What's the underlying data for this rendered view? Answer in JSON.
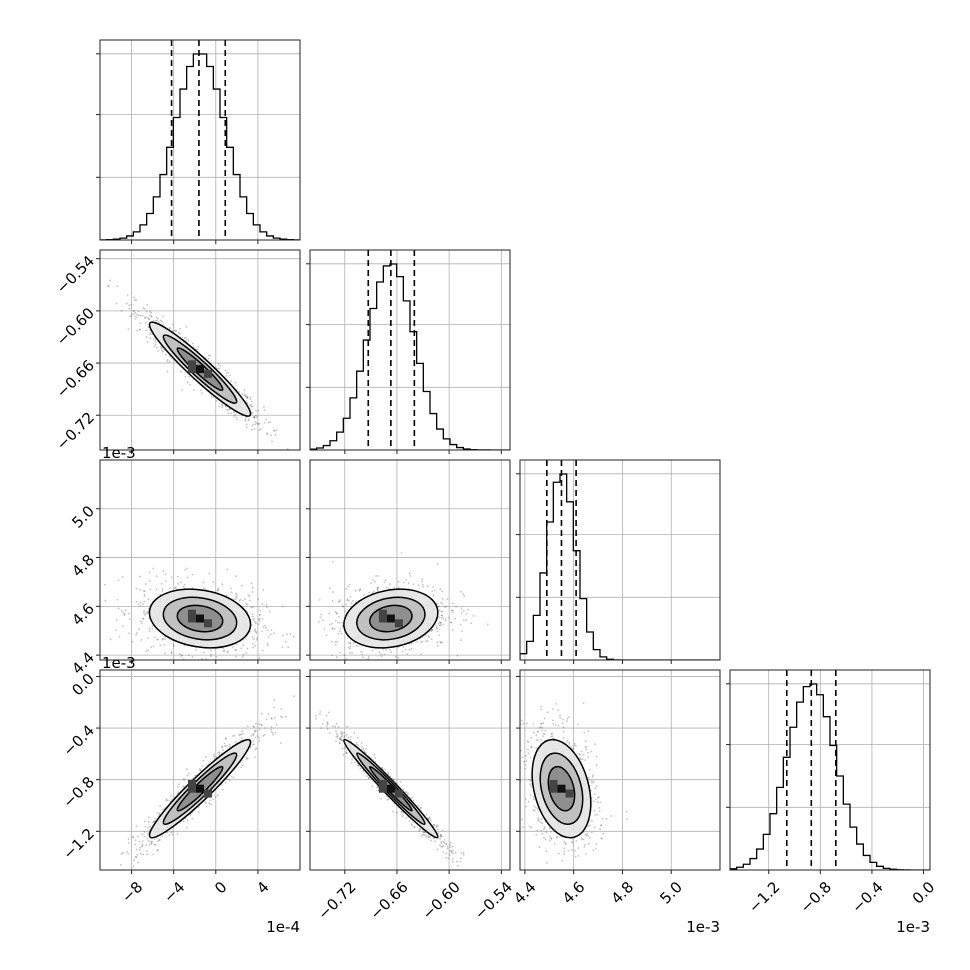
{
  "chart_data": {
    "type": "corner",
    "grid": true,
    "colors": {
      "hist": "#000000",
      "quantile": "#000000",
      "points": "#555555",
      "grid": "#b0b0b0",
      "frame": "#222222"
    },
    "parameters": [
      {
        "offset_label": "1e-4",
        "min": -11.0,
        "max": 8.0,
        "ticks": [
          -8,
          -4,
          0,
          4
        ],
        "tick_labels": [
          "−8",
          "−4",
          "0",
          "4"
        ],
        "mean": -1.5,
        "sd": 2.4,
        "quantiles": [
          -4.2,
          -1.6,
          0.9
        ]
      },
      {
        "offset_label": "",
        "min": -0.76,
        "max": -0.53,
        "ticks": [
          -0.72,
          -0.66,
          -0.6,
          -0.54
        ],
        "tick_labels": [
          "−0.72",
          "−0.66",
          "−0.60",
          "−0.54"
        ],
        "mean": -0.667,
        "sd": 0.027,
        "quantiles": [
          -0.693,
          -0.667,
          -0.64
        ]
      },
      {
        "offset_label": "1e-3",
        "min": 4.38,
        "max": 5.2,
        "ticks": [
          4.4,
          4.6,
          4.8,
          5.0
        ],
        "tick_labels": [
          "4.4",
          "4.6",
          "4.8",
          "5.0"
        ],
        "mean": 4.55,
        "sd": 0.06,
        "quantiles": [
          4.49,
          4.55,
          4.61
        ]
      },
      {
        "offset_label": "1e-3",
        "min": -1.5,
        "max": 0.05,
        "ticks": [
          -1.2,
          -0.8,
          -0.4,
          0.0
        ],
        "tick_labels": [
          "−1.2",
          "−0.8",
          "−0.4",
          "0.0"
        ],
        "mean": -0.87,
        "sd": 0.19,
        "quantiles": [
          -1.06,
          -0.87,
          -0.68
        ]
      }
    ],
    "correlations": [
      {
        "i": 1,
        "j": 0,
        "r": -0.95
      },
      {
        "i": 2,
        "j": 0,
        "r": -0.2
      },
      {
        "i": 2,
        "j": 1,
        "r": 0.2
      },
      {
        "i": 3,
        "j": 0,
        "r": 0.95
      },
      {
        "i": 3,
        "j": 1,
        "r": -0.98
      },
      {
        "i": 3,
        "j": 2,
        "r": -0.3
      }
    ]
  }
}
